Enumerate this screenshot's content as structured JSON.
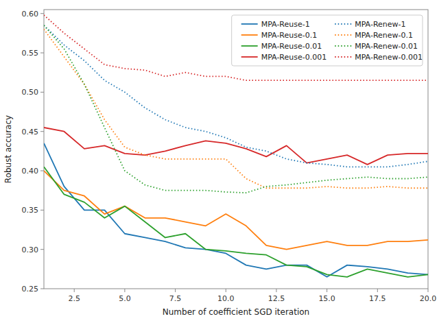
{
  "chart_data": {
    "type": "line",
    "x_label": "Number of coefficient SGD iteration",
    "y_label": "Robust accuracy",
    "x": [
      1,
      2,
      3,
      4,
      5,
      6,
      7,
      8,
      9,
      10,
      11,
      12,
      13,
      14,
      15,
      16,
      17,
      18,
      19,
      20
    ],
    "xlim": [
      1,
      20
    ],
    "ylim": [
      0.25,
      0.605
    ],
    "xticks": [
      2.5,
      {
        "value": 5.0,
        "label": "5.0"
      },
      7.5,
      {
        "value": 10.0,
        "label": "10.0"
      },
      12.5,
      {
        "value": 15.0,
        "label": "15.0"
      },
      17.5,
      {
        "value": 20.0,
        "label": "20.0"
      }
    ],
    "yticks": [
      0.25,
      {
        "value": 0.3,
        "label": "0.30"
      },
      0.35,
      {
        "value": 0.4,
        "label": "0.40"
      },
      0.45,
      {
        "value": 0.5,
        "label": "0.50"
      },
      0.55,
      {
        "value": 0.6,
        "label": "0.60"
      }
    ],
    "legend": "upper right",
    "series": [
      {
        "name": "MPA-Reuse-1",
        "color": "#1f77b4",
        "line_style": "solid",
        "values": [
          0.435,
          0.38,
          0.35,
          0.35,
          0.32,
          0.315,
          0.31,
          0.302,
          0.3,
          0.295,
          0.28,
          0.275,
          0.28,
          0.28,
          0.265,
          0.28,
          0.278,
          0.275,
          0.27,
          0.268
        ]
      },
      {
        "name": "MPA-Reuse-0.1",
        "color": "#ff7f0e",
        "line_style": "solid",
        "values": [
          0.4,
          0.375,
          0.368,
          0.345,
          0.355,
          0.34,
          0.34,
          0.335,
          0.33,
          0.345,
          0.33,
          0.305,
          0.3,
          0.305,
          0.31,
          0.305,
          0.305,
          0.31,
          0.31,
          0.312
        ]
      },
      {
        "name": "MPA-Reuse-0.01",
        "color": "#2ca02c",
        "line_style": "solid",
        "values": [
          0.405,
          0.37,
          0.36,
          0.34,
          0.355,
          0.335,
          0.315,
          0.32,
          0.3,
          0.298,
          0.295,
          0.293,
          0.28,
          0.278,
          0.268,
          0.265,
          0.275,
          0.27,
          0.265,
          0.268
        ]
      },
      {
        "name": "MPA-Reuse-0.001",
        "color": "#d62728",
        "line_style": "solid",
        "values": [
          0.455,
          0.45,
          0.428,
          0.432,
          0.422,
          0.42,
          0.425,
          0.432,
          0.438,
          0.435,
          0.428,
          0.418,
          0.432,
          0.41,
          0.415,
          0.42,
          0.408,
          0.42,
          0.422,
          0.422
        ]
      },
      {
        "name": "MPA-Renew-1",
        "color": "#1f77b4",
        "line_style": "dotted",
        "values": [
          0.585,
          0.56,
          0.54,
          0.515,
          0.5,
          0.48,
          0.465,
          0.455,
          0.45,
          0.442,
          0.43,
          0.425,
          0.415,
          0.41,
          0.408,
          0.405,
          0.405,
          0.405,
          0.408,
          0.412
        ]
      },
      {
        "name": "MPA-Renew-0.1",
        "color": "#ff7f0e",
        "line_style": "dotted",
        "values": [
          0.58,
          0.545,
          0.51,
          0.465,
          0.43,
          0.42,
          0.415,
          0.415,
          0.415,
          0.415,
          0.39,
          0.378,
          0.378,
          0.378,
          0.38,
          0.378,
          0.378,
          0.38,
          0.378,
          0.378
        ]
      },
      {
        "name": "MPA-Renew-0.01",
        "color": "#2ca02c",
        "line_style": "dotted",
        "values": [
          0.585,
          0.555,
          0.51,
          0.455,
          0.4,
          0.382,
          0.375,
          0.375,
          0.375,
          0.373,
          0.372,
          0.38,
          0.382,
          0.385,
          0.388,
          0.39,
          0.392,
          0.39,
          0.39,
          0.392
        ]
      },
      {
        "name": "MPA-Renew-0.001",
        "color": "#d62728",
        "line_style": "dotted",
        "values": [
          0.598,
          0.575,
          0.555,
          0.535,
          0.53,
          0.528,
          0.52,
          0.525,
          0.52,
          0.52,
          0.515,
          0.515,
          0.515,
          0.515,
          0.515,
          0.515,
          0.515,
          0.515,
          0.515,
          0.515
        ]
      }
    ]
  }
}
